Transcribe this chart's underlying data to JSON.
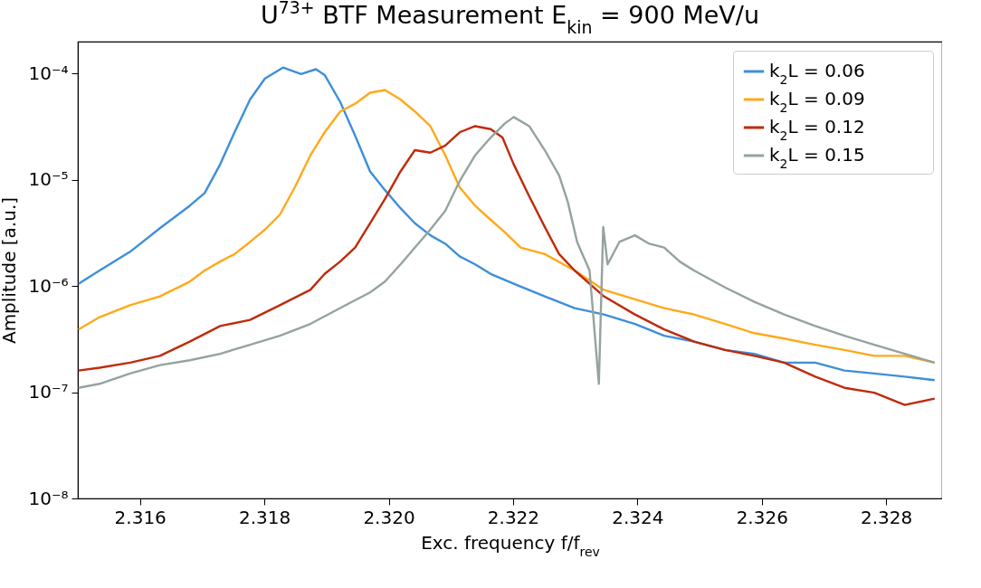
{
  "chart_data": {
    "type": "line",
    "title": "U$^{73+}$ BTF Measurement E$_{kin}$ = 900 MeV/u",
    "xlabel": "Exc. frequency f/f$_{rev}$",
    "ylabel": "Amplitude [a.u.]",
    "xlim": [
      2.315,
      2.3289
    ],
    "xticks": [
      2.316,
      2.318,
      {
        "value": 2.32,
        "label": "2.320"
      },
      2.322,
      2.324,
      2.326,
      2.328
    ],
    "ylim": [
      1e-08,
      0.0002
    ],
    "yticks": [
      {
        "value": 1e-08,
        "label": "10⁻⁸"
      },
      {
        "value": 1e-07,
        "label": "10⁻⁷"
      },
      {
        "value": 1e-06,
        "label": "10⁻⁶"
      },
      {
        "value": 1e-05,
        "label": "10⁻⁵"
      },
      {
        "value": 0.0001,
        "label": "10⁻⁴"
      }
    ],
    "log": "y",
    "grid": false,
    "legend": "top right",
    "series": [
      {
        "name": "k$_{2}$L = 0.06",
        "color": "#3d8fd9",
        "x": [
          2.31501,
          2.31535,
          2.31584,
          2.31632,
          2.3168,
          2.31704,
          2.31729,
          2.31752,
          2.31777,
          2.31801,
          2.3183,
          2.31859,
          2.31883,
          2.31897,
          2.31922,
          2.31946,
          2.3197,
          2.31994,
          2.32019,
          2.32042,
          2.32067,
          2.32091,
          2.32114,
          2.32139,
          2.32164,
          2.32201,
          2.32251,
          2.32299,
          2.32346,
          2.32396,
          2.32443,
          2.32491,
          2.32541,
          2.32588,
          2.32636,
          2.32686,
          2.32733,
          2.32781,
          2.3283,
          2.32878
        ],
        "values": [
          1.05e-06,
          1.4e-06,
          2.1e-06,
          3.5e-06,
          5.7e-06,
          7.5e-06,
          1.4e-05,
          2.8e-05,
          5.7e-05,
          9e-05,
          0.000114,
          9.9e-05,
          0.00011,
          9.7e-05,
          5.4e-05,
          2.6e-05,
          1.2e-05,
          8e-06,
          5.4e-06,
          3.9e-06,
          3e-06,
          2.5e-06,
          1.9e-06,
          1.6e-06,
          1.3e-06,
          1.05e-06,
          8e-07,
          6.2e-07,
          5.4e-07,
          4.4e-07,
          3.4e-07,
          3e-07,
          2.5e-07,
          2.3e-07,
          1.9e-07,
          1.9e-07,
          1.6e-07,
          1.5e-07,
          1.4e-07,
          1.3e-07
        ]
      },
      {
        "name": "k$_{2}$L = 0.09",
        "color": "#ffa91a",
        "x": [
          2.31501,
          2.31535,
          2.31584,
          2.31632,
          2.3168,
          2.31704,
          2.31729,
          2.31752,
          2.31777,
          2.31801,
          2.31825,
          2.31849,
          2.31874,
          2.31897,
          2.31922,
          2.31946,
          2.3197,
          2.31994,
          2.32019,
          2.32042,
          2.32067,
          2.32091,
          2.32114,
          2.32139,
          2.32164,
          2.32187,
          2.32212,
          2.32251,
          2.32299,
          2.32346,
          2.32396,
          2.32443,
          2.32491,
          2.32541,
          2.32588,
          2.32636,
          2.32686,
          2.32733,
          2.32781,
          2.3283,
          2.32878
        ],
        "values": [
          3.9e-07,
          5.1e-07,
          6.6e-07,
          8e-07,
          1.1e-06,
          1.4e-06,
          1.7e-06,
          2e-06,
          2.6e-06,
          3.4e-06,
          4.7e-06,
          8.5e-06,
          1.7e-05,
          2.8e-05,
          4.4e-05,
          5.2e-05,
          6.6e-05,
          7e-05,
          5.7e-05,
          4.4e-05,
          3.2e-05,
          1.7e-05,
          8.5e-06,
          5.7e-06,
          4.2e-06,
          3.2e-06,
          2.3e-06,
          2e-06,
          1.4e-06,
          9.2e-07,
          7.5e-07,
          6.2e-07,
          5.4e-07,
          4.4e-07,
          3.6e-07,
          3.2e-07,
          2.8e-07,
          2.5e-07,
          2.2e-07,
          2.2e-07,
          1.9e-07
        ]
      },
      {
        "name": "k$_{2}$L = 0.12",
        "color": "#c02a0b",
        "x": [
          2.31501,
          2.31535,
          2.31584,
          2.31632,
          2.3168,
          2.31729,
          2.31777,
          2.31825,
          2.31874,
          2.31897,
          2.31922,
          2.31946,
          2.3197,
          2.31994,
          2.32019,
          2.32042,
          2.32067,
          2.32091,
          2.32114,
          2.32139,
          2.32164,
          2.32183,
          2.32201,
          2.32226,
          2.32251,
          2.32274,
          2.32299,
          2.32323,
          2.32346,
          2.32396,
          2.32443,
          2.32491,
          2.32541,
          2.32588,
          2.32636,
          2.32686,
          2.32733,
          2.32781,
          2.3283,
          2.32878
        ],
        "values": [
          1.6e-07,
          1.7e-07,
          1.9e-07,
          2.2e-07,
          3e-07,
          4.2e-07,
          4.8e-07,
          6.6e-07,
          9.2e-07,
          1.3e-06,
          1.7e-06,
          2.3e-06,
          3.9e-06,
          6.6e-06,
          1.2e-05,
          1.9e-05,
          1.8e-05,
          2.1e-05,
          2.8e-05,
          3.2e-05,
          3e-05,
          2.5e-05,
          1.4e-05,
          7e-06,
          3.6e-06,
          2e-06,
          1.4e-06,
          1.05e-06,
          8e-07,
          5.4e-07,
          3.9e-07,
          3e-07,
          2.5e-07,
          2.2e-07,
          1.9e-07,
          1.4e-07,
          1.1e-07,
          9.9e-08,
          7.6e-08,
          8.7e-08
        ]
      },
      {
        "name": "k$_{2}$L = 0.15",
        "color": "#95a39f",
        "x": [
          2.31501,
          2.31535,
          2.31584,
          2.31632,
          2.3168,
          2.31729,
          2.31777,
          2.31825,
          2.31874,
          2.31922,
          2.3197,
          2.31994,
          2.32019,
          2.32042,
          2.32067,
          2.32091,
          2.32114,
          2.32139,
          2.32164,
          2.32187,
          2.32201,
          2.32226,
          2.32251,
          2.32274,
          2.32288,
          2.32303,
          2.32323,
          2.32338,
          2.32345,
          2.32352,
          2.32371,
          2.32396,
          2.32419,
          2.32443,
          2.32468,
          2.32491,
          2.32541,
          2.32588,
          2.32636,
          2.32686,
          2.32733,
          2.32781,
          2.3283,
          2.32878
        ],
        "values": [
          1.1e-07,
          1.2e-07,
          1.5e-07,
          1.8e-07,
          2e-07,
          2.3e-07,
          2.8e-07,
          3.4e-07,
          4.4e-07,
          6.2e-07,
          8.7e-07,
          1.1e-06,
          1.6e-06,
          2.3e-06,
          3.4e-06,
          5.1e-06,
          9.7e-06,
          1.7e-05,
          2.5e-05,
          3.4e-05,
          3.9e-05,
          3.2e-05,
          1.9e-05,
          1.1e-05,
          6.2e-06,
          2.6e-06,
          1.4e-06,
          1.2e-07,
          3.6e-06,
          1.6e-06,
          2.6e-06,
          3e-06,
          2.5e-06,
          2.3e-06,
          1.7e-06,
          1.4e-06,
          9.7e-07,
          7.1e-07,
          5.4e-07,
          4.2e-07,
          3.4e-07,
          2.8e-07,
          2.3e-07,
          1.9e-07
        ]
      }
    ]
  }
}
